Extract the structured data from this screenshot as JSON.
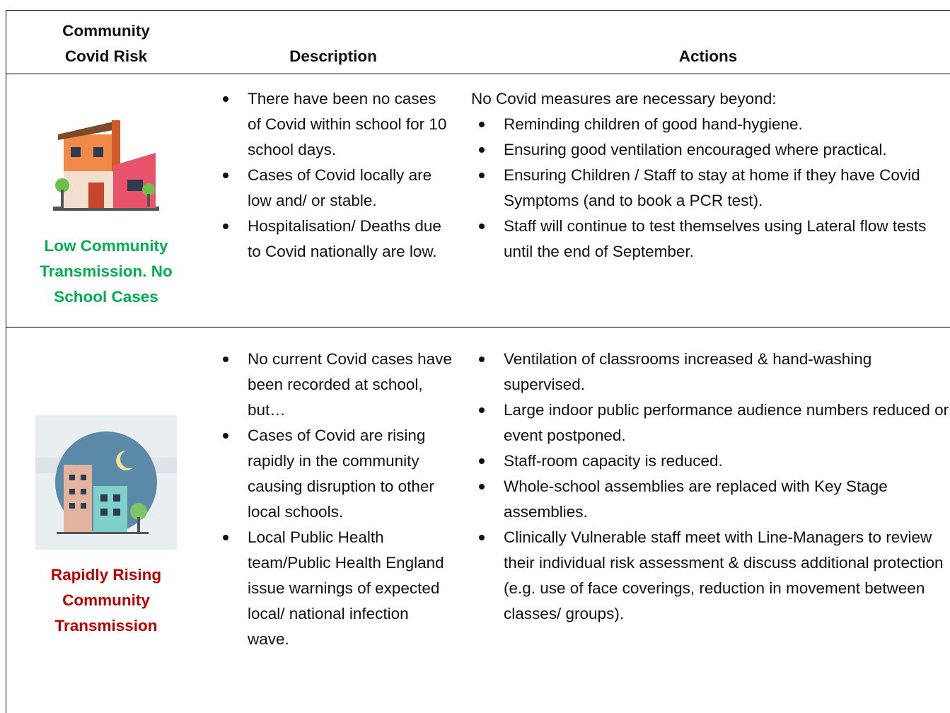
{
  "header": {
    "columns": [
      "Community Covid Risk",
      "Description",
      "Actions"
    ]
  },
  "rows": [
    {
      "level": "Low Community Transmission. No School Cases",
      "description": [
        "There have been no cases of Covid within school for 10 school days.",
        "Cases of Covid locally are low and/ or stable.",
        "Hospitalisation/ Deaths due to Covid nationally are low."
      ],
      "actions_intro": "No Covid measures are necessary beyond:",
      "actions": [
        "Reminding children of good hand-hygiene.",
        "Ensuring good ventilation encouraged where practical.",
        "Ensuring Children / Staff to stay at home if they have Covid Symptoms (and to book a PCR test).",
        "Staff will continue to test themselves using Lateral flow tests until the end of September."
      ]
    },
    {
      "level": "Rapidly Rising Community Transmission",
      "description": [
        "No current Covid cases have been recorded at school, but…",
        "Cases of Covid are rising rapidly in the community causing disruption to other local schools.",
        "Local Public Health team/Public Health England issue warnings of expected local/ national infection wave."
      ],
      "actions": [
        "Ventilation of classrooms increased & hand-washing supervised.",
        "Large indoor public performance audience numbers reduced or event postponed.",
        "Staff-room capacity is reduced.",
        "Whole-school assemblies are replaced with Key Stage assemblies.",
        "Clinically Vulnerable staff meet with Line-Managers to review their individual risk assessment & discuss additional protection (e.g. use of face coverings, reduction in movement between classes/ groups)."
      ]
    }
  ]
}
